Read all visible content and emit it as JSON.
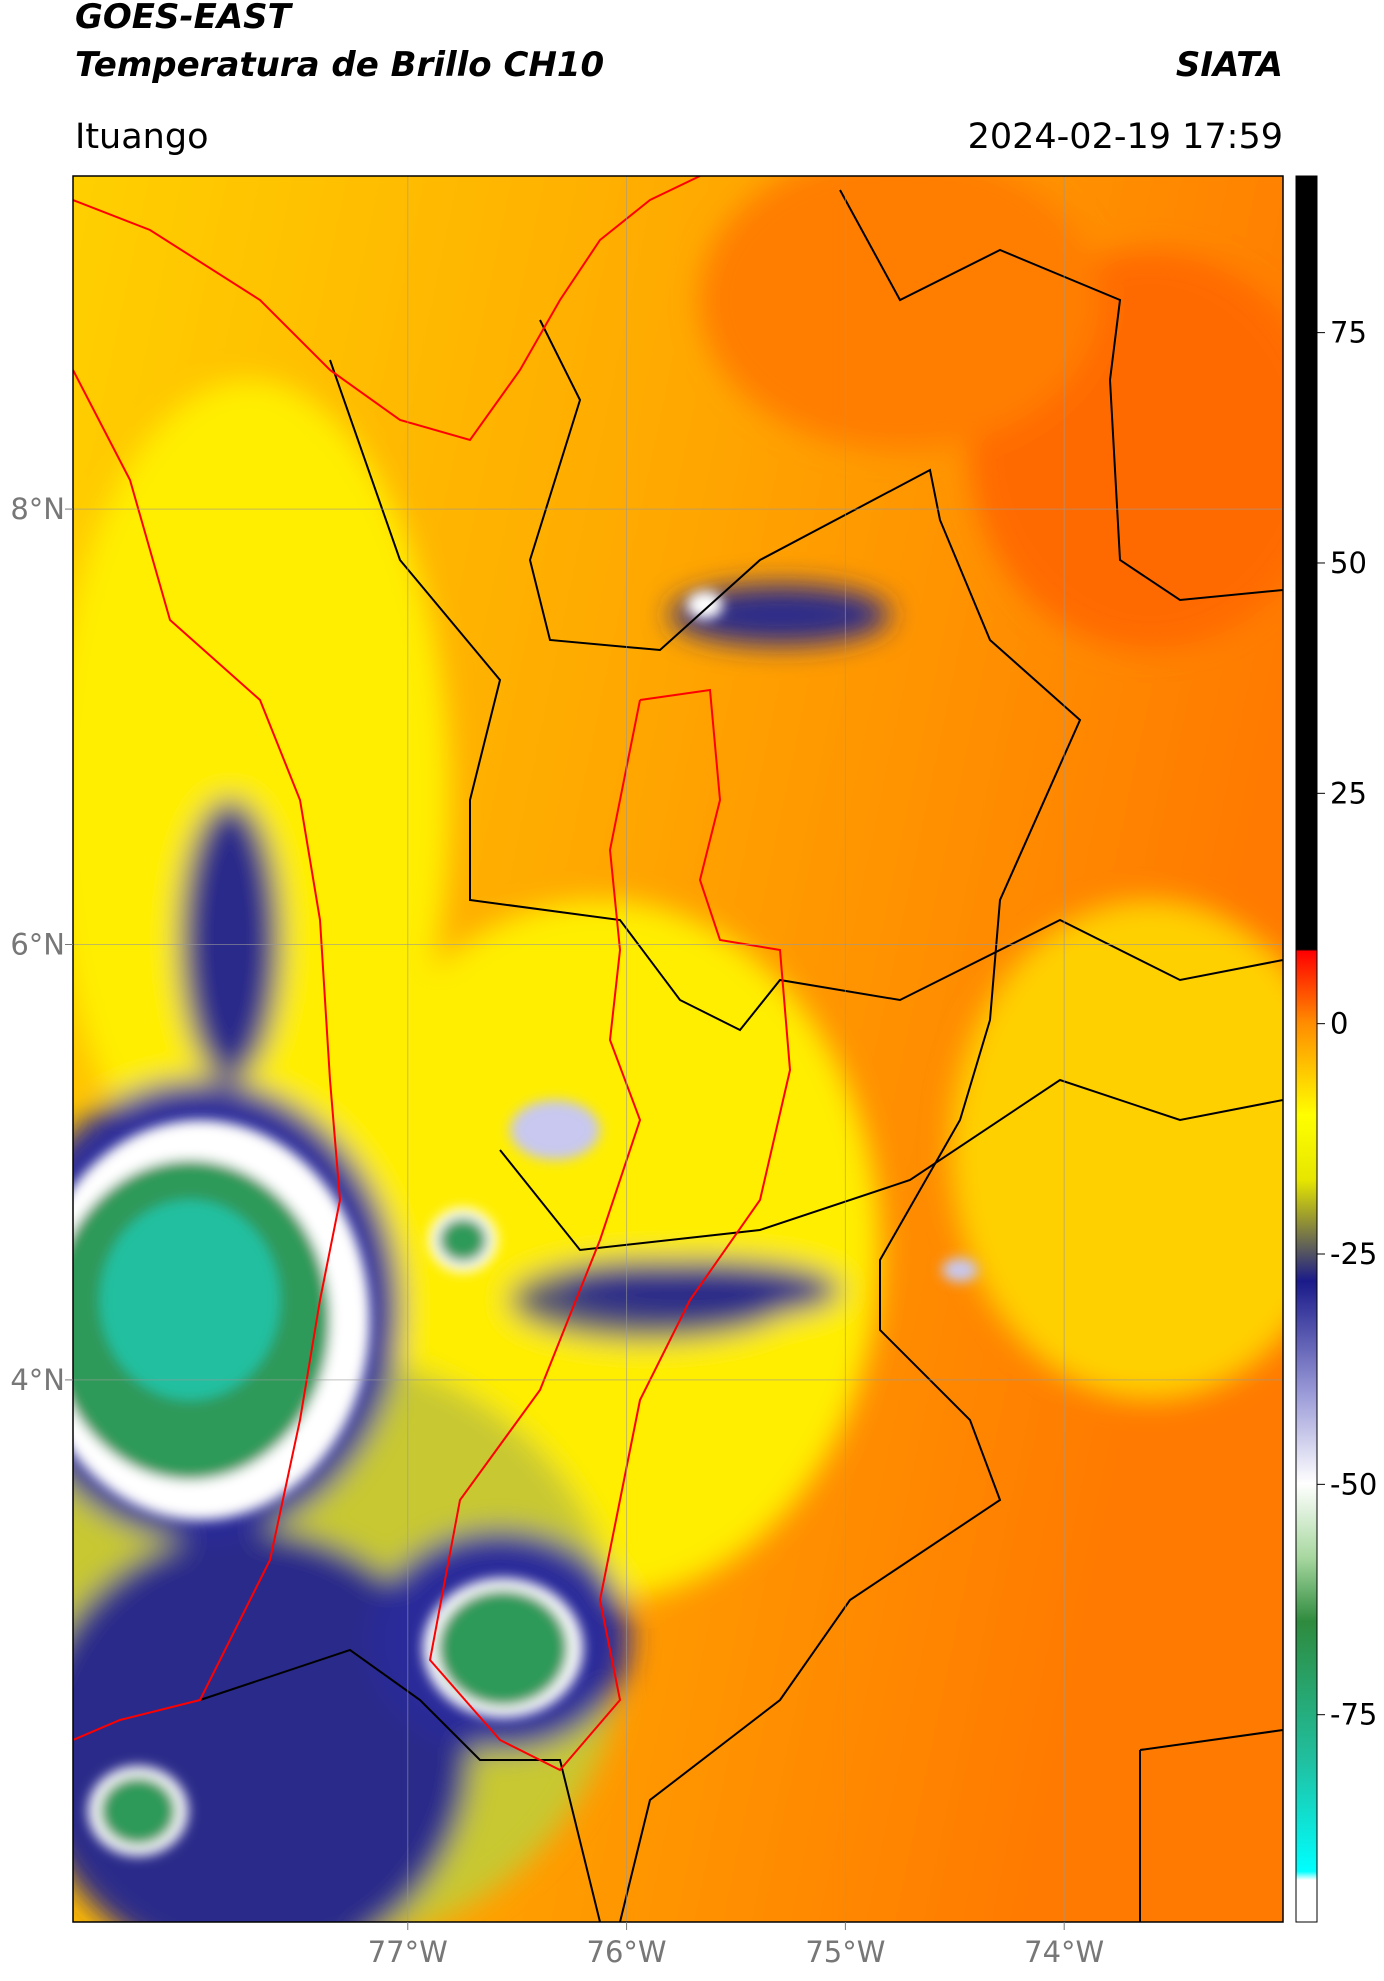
{
  "header": {
    "title": "GOES-EAST",
    "subtitle": "Temperatura de Brillo CH10",
    "brand": "SIATA",
    "location": "Ituango",
    "datetime": "2024-02-19 17:59"
  },
  "map": {
    "type": "map",
    "xlim": [
      -78.53,
      -73.0
    ],
    "ylim": [
      1.51,
      9.53
    ],
    "xticks": [
      {
        "value": -77,
        "label": "77°W"
      },
      {
        "value": -76,
        "label": "76°W"
      },
      {
        "value": -75,
        "label": "75°W"
      },
      {
        "value": -74,
        "label": "74°W"
      }
    ],
    "yticks": [
      {
        "value": 8,
        "label": "8°N"
      },
      {
        "value": 6,
        "label": "6°N"
      },
      {
        "value": 4,
        "label": "4°N"
      }
    ],
    "grid": true
  },
  "colorbar": {
    "lim": [
      -97.5,
      92
    ],
    "ticks": [
      75,
      50,
      25,
      0,
      -25,
      -50,
      -75
    ]
  }
}
